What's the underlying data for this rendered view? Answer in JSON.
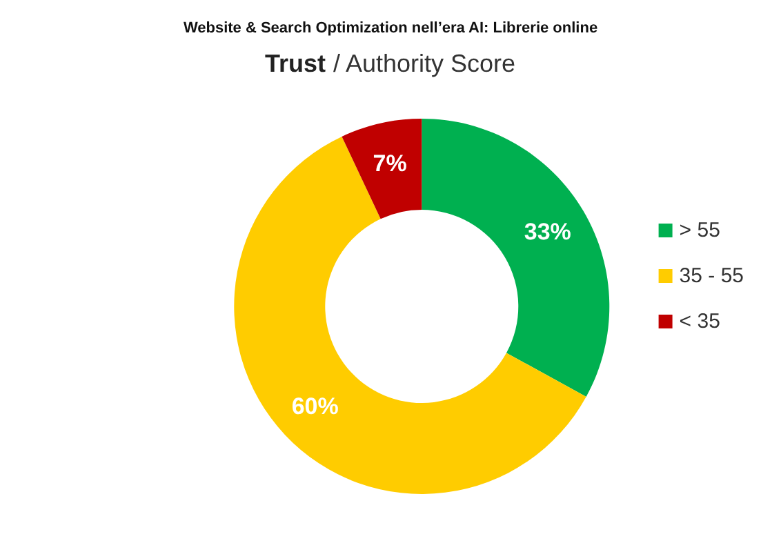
{
  "chart_data": {
    "type": "donut",
    "title": "Website & Search Optimization nell’era AI: Librerie online",
    "subtitle": "Trust / Authority Score",
    "categories": [
      "> 55",
      "35 - 55",
      "< 35"
    ],
    "values": [
      33,
      60,
      7
    ],
    "colors": [
      "#00b050",
      "#ffcc00",
      "#c00000"
    ],
    "value_labels": [
      "33%",
      "60%",
      "7%"
    ],
    "legend": "right"
  }
}
